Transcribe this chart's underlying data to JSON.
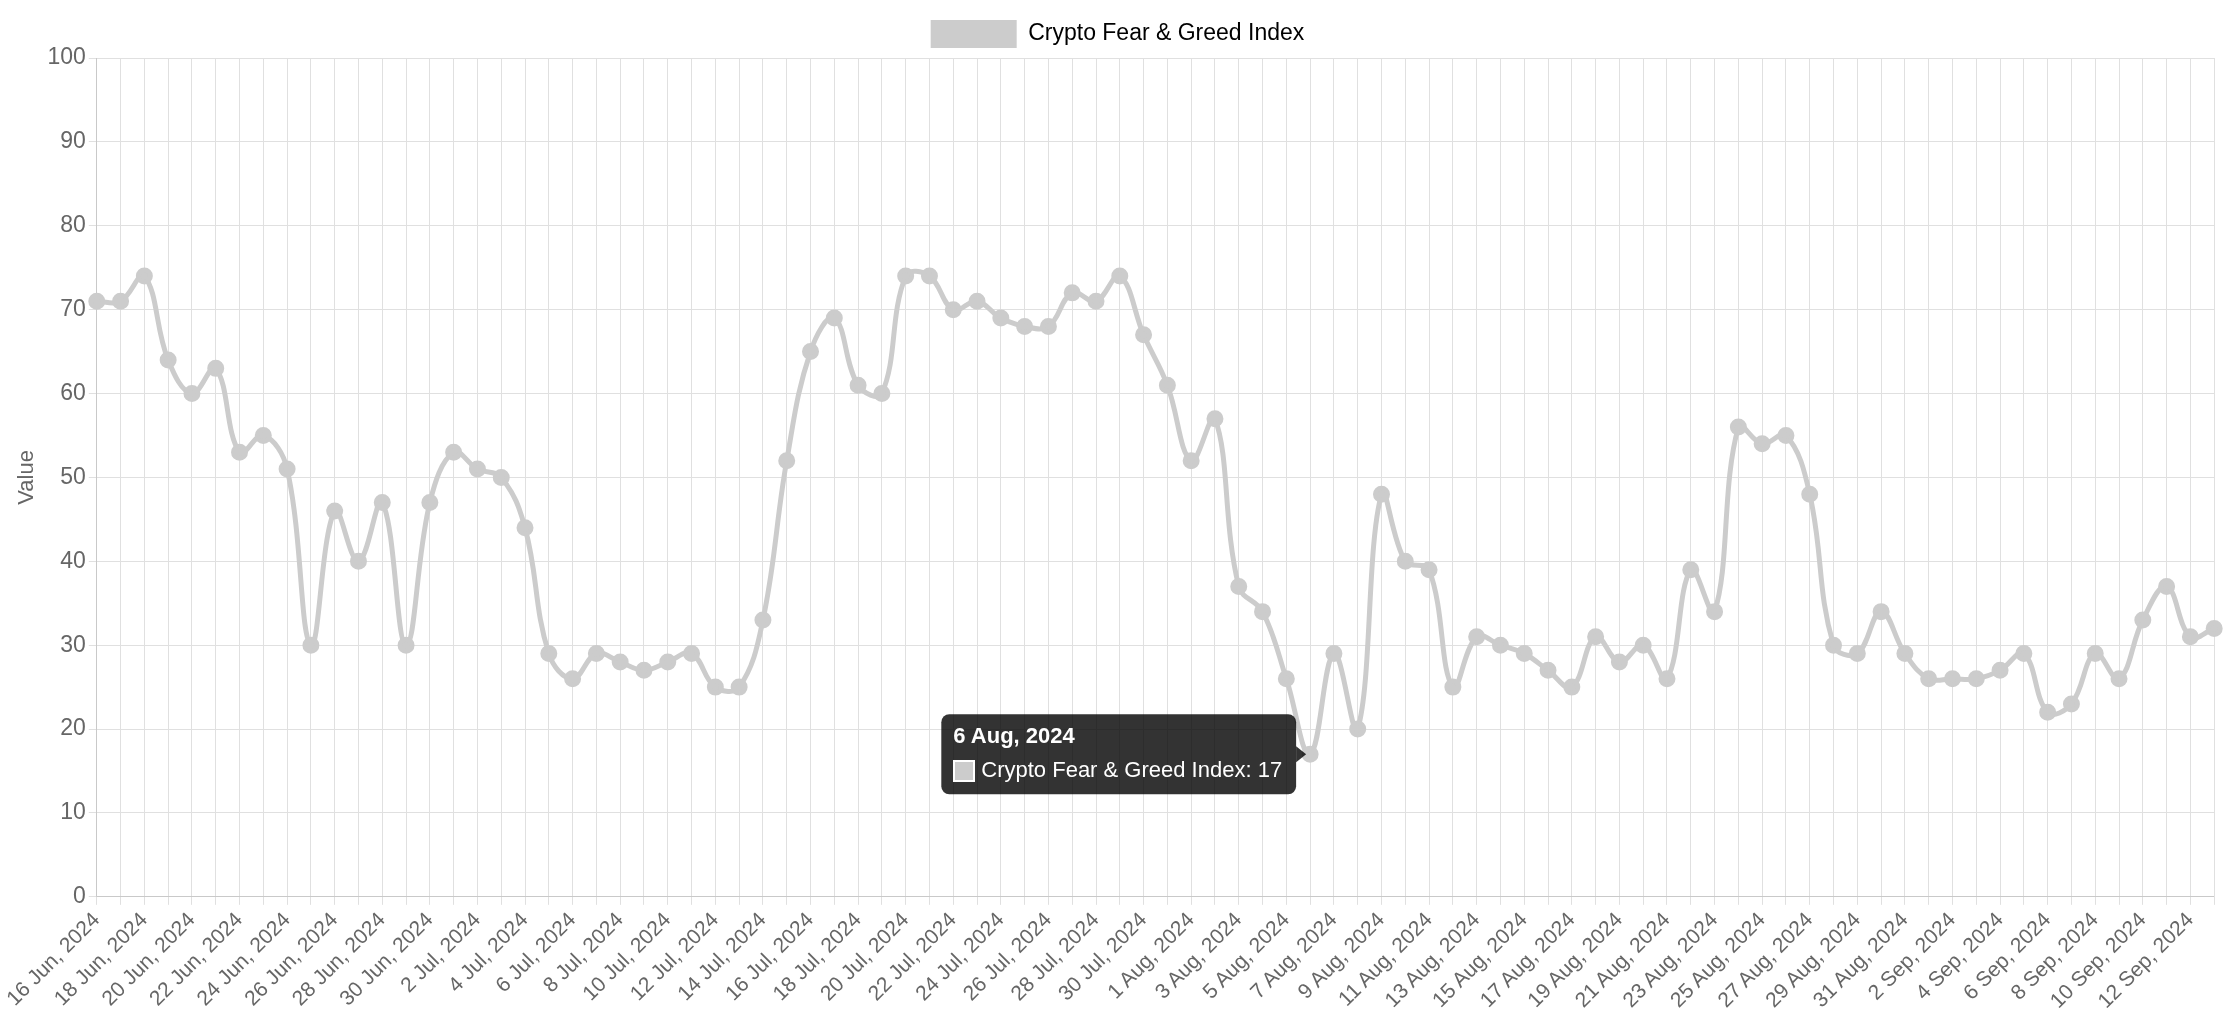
{
  "chart_data": {
    "type": "line",
    "ylabel": "Value",
    "categories": [
      "16 Jun, 2024",
      null,
      "18 Jun, 2024",
      null,
      "20 Jun, 2024",
      null,
      "22 Jun, 2024",
      null,
      "24 Jun, 2024",
      null,
      "26 Jun, 2024",
      null,
      "28 Jun, 2024",
      null,
      "30 Jun, 2024",
      null,
      "2 Jul, 2024",
      null,
      "4 Jul, 2024",
      null,
      "6 Jul, 2024",
      null,
      "8 Jul, 2024",
      null,
      "10 Jul, 2024",
      null,
      "12 Jul, 2024",
      null,
      "14 Jul, 2024",
      null,
      "16 Jul, 2024",
      null,
      "18 Jul, 2024",
      null,
      "20 Jul, 2024",
      null,
      "22 Jul, 2024",
      null,
      "24 Jul, 2024",
      null,
      "26 Jul, 2024",
      null,
      "28 Jul, 2024",
      null,
      "30 Jul, 2024",
      null,
      "1 Aug, 2024",
      null,
      "3 Aug, 2024",
      null,
      "5 Aug, 2024",
      null,
      "7 Aug, 2024",
      null,
      "9 Aug, 2024",
      null,
      "11 Aug, 2024",
      null,
      "13 Aug, 2024",
      null,
      "15 Aug, 2024",
      null,
      "17 Aug, 2024",
      null,
      "19 Aug, 2024",
      null,
      "21 Aug, 2024",
      null,
      "23 Aug, 2024",
      null,
      "25 Aug, 2024",
      null,
      "27 Aug, 2024",
      null,
      "29 Aug, 2024",
      null,
      "31 Aug, 2024",
      null,
      "2 Sep, 2024",
      null,
      "4 Sep, 2024",
      null,
      "6 Sep, 2024",
      null,
      "8 Sep, 2024",
      null,
      "10 Sep, 2024",
      null,
      "12 Sep, 2024",
      null
    ],
    "series": [
      {
        "name": "Crypto Fear & Greed Index",
        "color": "#cccccc",
        "values": [
          71,
          71,
          74,
          64,
          60,
          63,
          53,
          55,
          51,
          30,
          46,
          40,
          47,
          30,
          47,
          53,
          51,
          50,
          44,
          29,
          26,
          29,
          28,
          27,
          28,
          29,
          25,
          25,
          33,
          52,
          65,
          69,
          61,
          60,
          74,
          74,
          70,
          71,
          69,
          68,
          68,
          72,
          71,
          74,
          67,
          61,
          52,
          57,
          37,
          34,
          26,
          17,
          29,
          20,
          48,
          40,
          39,
          25,
          31,
          30,
          29,
          27,
          25,
          31,
          28,
          30,
          26,
          39,
          34,
          56,
          54,
          55,
          48,
          30,
          29,
          34,
          29,
          26,
          26,
          26,
          27,
          29,
          22,
          23,
          29,
          26,
          33,
          37,
          31,
          32
        ]
      }
    ],
    "ylim": [
      0,
      100
    ],
    "yticks": [
      0,
      10,
      20,
      30,
      40,
      50,
      60,
      70,
      80,
      90,
      100
    ],
    "grid": true,
    "legend": "top",
    "marker": "circle",
    "line_style": "solid",
    "annotations": [
      "6 Aug, 2024",
      "Crypto Fear & Greed Index: 17"
    ]
  }
}
